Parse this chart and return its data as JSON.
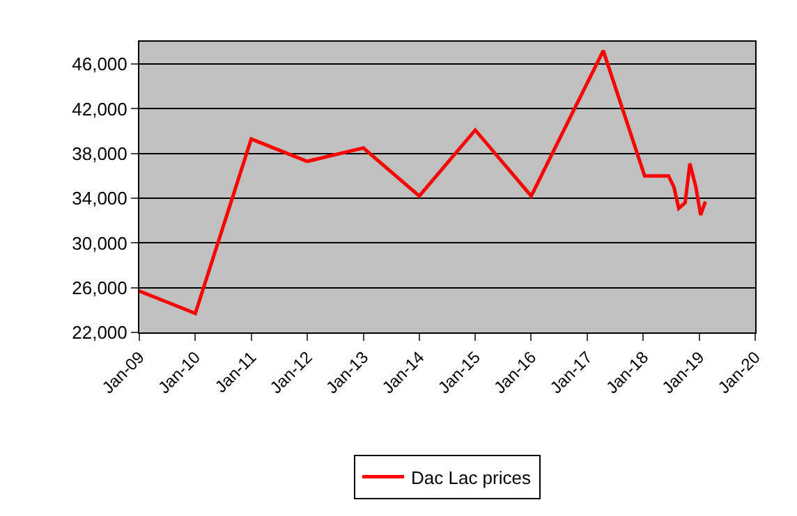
{
  "chart_data": {
    "type": "line",
    "x": [
      "2009-01-01",
      "2010-01-01",
      "2011-01-01",
      "2012-01-01",
      "2013-01-01",
      "2014-01-01",
      "2015-01-01",
      "2016-01-01",
      "2017-04-15",
      "2018-01-10",
      "2018-06-15",
      "2018-07-20",
      "2018-08-20",
      "2018-10-01",
      "2018-11-01",
      "2018-12-10",
      "2019-01-10",
      "2019-02-10"
    ],
    "series": [
      {
        "name": "Dac Lac prices",
        "color": "#ff0000",
        "values": [
          25700,
          23700,
          39300,
          37300,
          38500,
          34200,
          40100,
          34200,
          47200,
          36000,
          36000,
          35000,
          33100,
          33600,
          37100,
          35000,
          32500,
          33700
        ]
      }
    ],
    "xlim": [
      "2009-01-01",
      "2020-01-01"
    ],
    "xticks": [
      {
        "value": "2009-01-01",
        "label": "Jan-09"
      },
      {
        "value": "2010-01-01",
        "label": "Jan-10"
      },
      {
        "value": "2011-01-01",
        "label": "Jan-11"
      },
      {
        "value": "2012-01-01",
        "label": "Jan-12"
      },
      {
        "value": "2013-01-01",
        "label": "Jan-13"
      },
      {
        "value": "2014-01-01",
        "label": "Jan-14"
      },
      {
        "value": "2015-01-01",
        "label": "Jan-15"
      },
      {
        "value": "2016-01-01",
        "label": "Jan-16"
      },
      {
        "value": "2017-01-01",
        "label": "Jan-17"
      },
      {
        "value": "2018-01-01",
        "label": "Jan-18"
      },
      {
        "value": "2019-01-01",
        "label": "Jan-19"
      },
      {
        "value": "2020-01-01",
        "label": "Jan-20"
      }
    ],
    "ylim": [
      22000,
      48000
    ],
    "yticks": [
      {
        "value": 22000,
        "label": "22,000"
      },
      {
        "value": 26000,
        "label": "26,000"
      },
      {
        "value": 30000,
        "label": "30,000"
      },
      {
        "value": 34000,
        "label": "34,000"
      },
      {
        "value": 38000,
        "label": "38,000"
      },
      {
        "value": 42000,
        "label": "42,000"
      },
      {
        "value": 46000,
        "label": "46,000"
      }
    ],
    "grid": "y",
    "legend": "bottom",
    "marker": "none",
    "line_style": "solid"
  }
}
